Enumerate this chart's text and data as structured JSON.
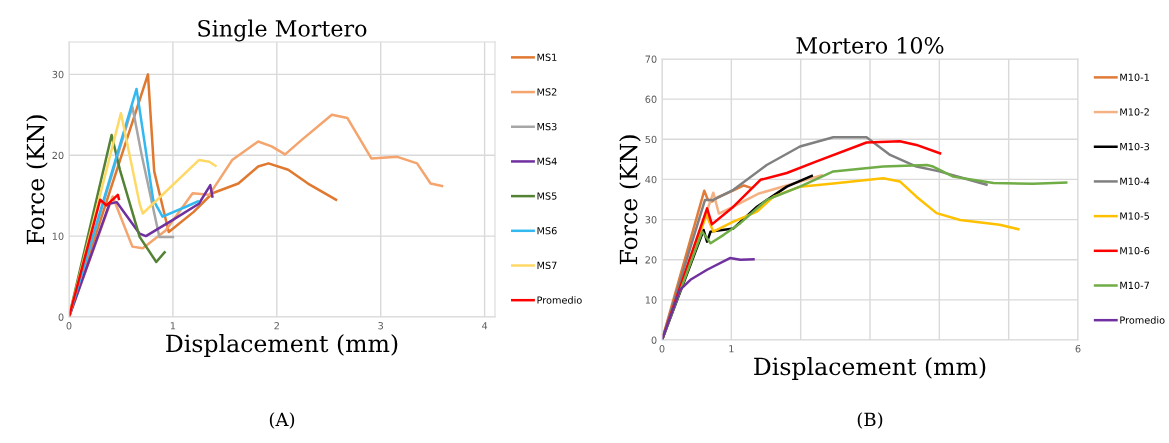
{
  "chart_data": [
    {
      "type": "line",
      "title": "Single Mortero",
      "xlabel": "Displacement (mm)",
      "ylabel": "Force (KN)",
      "annotations": [
        "(A)"
      ],
      "xlim": [
        0,
        4.1
      ],
      "ylim": [
        0,
        34
      ],
      "xticks": [
        0,
        1,
        2,
        3,
        4
      ],
      "yticks": [
        0,
        10,
        20,
        30
      ],
      "grid": true,
      "legend": "right",
      "marker": "none",
      "line_style": "solid",
      "series": [
        {
          "name": "MS1",
          "color": "#e0782f",
          "x": [
            0,
            0.76,
            0.82,
            0.96,
            1.2,
            1.38,
            1.63,
            1.82,
            1.92,
            2.11,
            2.3,
            2.57
          ],
          "values": [
            0,
            30,
            18,
            10.5,
            13,
            15.3,
            16.5,
            18.6,
            19,
            18.2,
            16.5,
            14.5
          ]
        },
        {
          "name": "MS2",
          "color": "#f4a46c",
          "x": [
            0,
            0.42,
            0.61,
            0.71,
            0.93,
            1.19,
            1.35,
            1.57,
            1.82,
            1.95,
            2.08,
            2.24,
            2.53,
            2.68,
            2.91,
            3.16,
            3.35,
            3.48,
            3.59
          ],
          "values": [
            0,
            14.9,
            8.7,
            8.5,
            10.7,
            15.3,
            15.1,
            19.4,
            21.7,
            21.1,
            20.1,
            21.9,
            25,
            24.6,
            19.6,
            19.8,
            19,
            16.5,
            16.2
          ]
        },
        {
          "name": "MS3",
          "color": "#a6a6a6",
          "x": [
            0,
            0.61,
            0.7,
            0.87,
            1.0
          ],
          "values": [
            0,
            26,
            20,
            9.9,
            9.9
          ]
        },
        {
          "name": "MS4",
          "color": "#7030a0",
          "x": [
            0,
            0.39,
            0.46,
            0.68,
            0.74,
            1.0,
            1.25,
            1.36,
            1.38
          ],
          "values": [
            0,
            14,
            14.2,
            10.3,
            10,
            12,
            14,
            16.3,
            14.9
          ]
        },
        {
          "name": "MS5",
          "color": "#548235",
          "x": [
            0,
            0.41,
            0.49,
            0.68,
            0.84,
            0.92
          ],
          "values": [
            0,
            22.5,
            18.2,
            9.9,
            6.8,
            8
          ]
        },
        {
          "name": "MS6",
          "color": "#33b8f0",
          "x": [
            0,
            0.65,
            0.81,
            0.9,
            1.12,
            1.24
          ],
          "values": [
            0,
            28.2,
            14.5,
            12.4,
            13.6,
            14.3
          ]
        },
        {
          "name": "MS7",
          "color": "#ffd966",
          "x": [
            0,
            0.5,
            0.68,
            0.71,
            1.25,
            1.35,
            1.41
          ],
          "values": [
            0,
            25.2,
            14,
            12.8,
            19.4,
            19.2,
            18.7
          ]
        },
        {
          "name": "Promedio",
          "color": "#ff0000",
          "x": [
            0,
            0.3,
            0.36,
            0.47,
            0.48
          ],
          "values": [
            0,
            14.5,
            13.8,
            15.1,
            14.6
          ]
        }
      ]
    },
    {
      "type": "line",
      "title": "Mortero 10%",
      "xlabel": "Displacement (mm)",
      "ylabel": "Force (KN)",
      "annotations": [
        "(B)"
      ],
      "xlim": [
        0,
        6
      ],
      "ylim": [
        0,
        70
      ],
      "xticks": [
        0,
        1,
        {
          "value": 2,
          "label": null
        },
        {
          "value": 3,
          "label": null
        },
        {
          "value": 4,
          "label": null
        },
        {
          "value": 5,
          "label": null
        },
        6
      ],
      "yticks": [
        0,
        10,
        20,
        30,
        40,
        50,
        60,
        70
      ],
      "grid": true,
      "legend": "right",
      "marker": "none",
      "line_style": "solid",
      "series": [
        {
          "name": "M10-1",
          "color": "#e07b39",
          "x": [
            0,
            0.61,
            0.66,
            0.72,
            0.8,
            1.0,
            1.18,
            1.27
          ],
          "values": [
            0,
            37.2,
            35,
            34.5,
            35.5,
            37,
            38.5,
            38
          ]
        },
        {
          "name": "M10-2",
          "color": "#f4b183",
          "x": [
            0,
            0.74,
            0.82,
            1.0,
            1.4,
            1.8,
            2.2,
            2.3
          ],
          "values": [
            0,
            36.7,
            31.5,
            33,
            36.5,
            38.5,
            40.5,
            41
          ]
        },
        {
          "name": "M10-3",
          "color": "#000000",
          "x": [
            0,
            0.6,
            0.65,
            0.7,
            1.03,
            1.37,
            1.8,
            2.16
          ],
          "values": [
            0,
            27.4,
            24.5,
            27,
            27.8,
            33.2,
            38.2,
            40.9
          ]
        },
        {
          "name": "M10-4",
          "color": "#808080",
          "x": [
            0,
            0.62,
            0.74,
            1.03,
            1.51,
            1.99,
            2.47,
            2.95,
            3.29,
            3.67,
            4.0,
            4.39,
            4.68
          ],
          "values": [
            0,
            34.9,
            34.9,
            37.4,
            43.6,
            48.2,
            50.5,
            50.5,
            46.1,
            43.2,
            42,
            40.1,
            38.7
          ]
        },
        {
          "name": "M10-5",
          "color": "#ffc000",
          "x": [
            0,
            0.64,
            0.74,
            1.03,
            1.37,
            1.61,
            1.99,
            2.47,
            3.19,
            3.43,
            3.67,
            3.96,
            4.3,
            4.87,
            5.14
          ],
          "values": [
            0,
            31.2,
            27,
            29.5,
            32,
            35.7,
            38.2,
            39,
            40.3,
            39.5,
            35.7,
            31.6,
            29.9,
            28.7,
            27.6
          ]
        },
        {
          "name": "M10-6",
          "color": "#ff0000",
          "x": [
            0,
            0.65,
            0.72,
            1.03,
            1.42,
            1.8,
            2.23,
            2.95,
            3.43,
            3.67,
            4.01
          ],
          "values": [
            0,
            32.8,
            28.8,
            33.2,
            39.9,
            41.6,
            44.5,
            49.2,
            49.5,
            48.6,
            46.5
          ]
        },
        {
          "name": "M10-7",
          "color": "#70ad47",
          "x": [
            0,
            0.58,
            0.7,
            0.89,
            1.13,
            1.51,
            1.99,
            2.47,
            3.19,
            3.82,
            3.91,
            4.2,
            4.78,
            5.35,
            5.83
          ],
          "values": [
            0,
            27,
            24.1,
            26.2,
            29.1,
            34.9,
            38.2,
            42,
            43.2,
            43.6,
            43.2,
            40.7,
            39.1,
            38.9,
            39.2
          ]
        },
        {
          "name": "Promedio",
          "color": "#7030a0",
          "x": [
            0,
            0.26,
            0.41,
            0.65,
            0.98,
            1.13,
            1.32
          ],
          "values": [
            0,
            12.5,
            15,
            17.5,
            20.4,
            20,
            20.1
          ]
        }
      ]
    }
  ]
}
